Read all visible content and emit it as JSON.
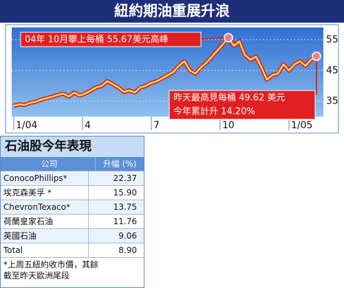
{
  "chart_data": {
    "type": "line",
    "title": "紐約期油重展升浪",
    "x": [
      0,
      0.24,
      0.48,
      0.72,
      0.96,
      1.2,
      1.44,
      1.68,
      1.92,
      2.16,
      2.4,
      2.64,
      2.88,
      3.12,
      3.36,
      3.6,
      3.84,
      4.08,
      4.32,
      4.56,
      4.8,
      5.04,
      5.28,
      5.52,
      5.76,
      6,
      6.24,
      6.48,
      6.72,
      6.96,
      7.2,
      7.44,
      7.68,
      7.92,
      8.16,
      8.4,
      8.64,
      8.88,
      9.12,
      9.36,
      9.6,
      9.84,
      10.08,
      10.32,
      10.56,
      10.8,
      11.04,
      11.28,
      11.52,
      11.76,
      12,
      12.24,
      12.48,
      12.72,
      12.96,
      13.2
    ],
    "series": [
      {
        "color": "#ffe14a",
        "values": [
          33.5,
          34,
          33.8,
          34.5,
          34.8,
          35.5,
          36,
          36.5,
          37,
          37.5,
          36.5,
          37.8,
          36.8,
          37.5,
          38.5,
          39.5,
          40,
          41.5,
          40.5,
          39.5,
          38,
          38.5,
          37.8,
          39.5,
          40,
          41,
          41.5,
          42.5,
          43.5,
          44.5,
          46.5,
          48,
          45,
          44,
          46,
          47.5,
          49.5,
          51.5,
          53.5,
          55.67,
          53,
          54.5,
          50,
          48.5,
          49.5,
          46,
          42,
          43.5,
          44,
          47,
          45,
          47,
          48,
          46.5,
          48.5,
          49.62
        ]
      }
    ],
    "xlim": [
      -0.09,
      13.5
    ],
    "xticks": [
      {
        "value": 0,
        "label": "1/04"
      },
      {
        "value": 3,
        "label": "4"
      },
      {
        "value": 6,
        "label": "7"
      },
      {
        "value": 9,
        "label": "10"
      },
      {
        "value": 12,
        "label": "1/05"
      }
    ],
    "ylim": [
      30,
      59
    ],
    "yticks": [
      35,
      45,
      55
    ],
    "grid": true,
    "annotations": [
      "04年 10月攀上每桶 55.67美元高峰",
      "昨天最高見每桶 49.62 美元",
      "今年累計升 14.20%"
    ]
  },
  "table": {
    "title": "石油股今年表現",
    "header": [
      "公司",
      "升幅 (%)"
    ],
    "rows": [
      [
        "ConocoPhillips*",
        "22.37"
      ],
      [
        "埃克森美孚 *",
        "15.90"
      ],
      [
        "ChevronTexaco*",
        "13.75"
      ],
      [
        "荷蘭皇家石油",
        "11.76"
      ],
      [
        "英國石油",
        "9.06"
      ],
      [
        "Total",
        "8.90"
      ]
    ],
    "footnote": [
      "*上周五紐約收市價，其餘",
      "截至昨天歐洲尾段"
    ]
  }
}
